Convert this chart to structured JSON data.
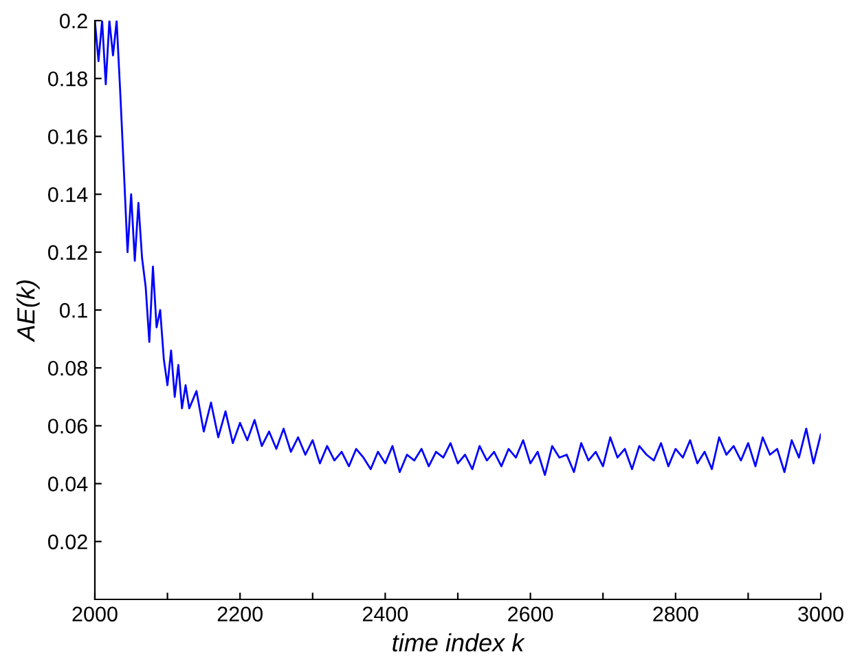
{
  "chart_data": {
    "type": "line",
    "xlabel": "time index k",
    "ylabel": "AE(k)",
    "x": [
      2000,
      2005,
      2010,
      2015,
      2020,
      2025,
      2030,
      2035,
      2040,
      2045,
      2050,
      2055,
      2060,
      2065,
      2070,
      2075,
      2080,
      2085,
      2090,
      2095,
      2100,
      2105,
      2110,
      2115,
      2120,
      2125,
      2130,
      2140,
      2150,
      2160,
      2170,
      2180,
      2190,
      2200,
      2210,
      2220,
      2230,
      2240,
      2250,
      2260,
      2270,
      2280,
      2290,
      2300,
      2310,
      2320,
      2330,
      2340,
      2350,
      2360,
      2370,
      2380,
      2390,
      2400,
      2410,
      2420,
      2430,
      2440,
      2450,
      2460,
      2470,
      2480,
      2490,
      2500,
      2510,
      2520,
      2530,
      2540,
      2550,
      2560,
      2570,
      2580,
      2590,
      2600,
      2610,
      2620,
      2630,
      2640,
      2650,
      2660,
      2670,
      2680,
      2690,
      2700,
      2710,
      2720,
      2730,
      2740,
      2750,
      2760,
      2770,
      2780,
      2790,
      2800,
      2810,
      2820,
      2830,
      2840,
      2850,
      2860,
      2870,
      2880,
      2890,
      2900,
      2910,
      2920,
      2930,
      2940,
      2950,
      2960,
      2970,
      2980,
      2990,
      3000
    ],
    "series": [
      {
        "color": "#0000ff",
        "values": [
          0.2,
          0.186,
          0.2,
          0.178,
          0.2,
          0.188,
          0.2,
          0.175,
          0.148,
          0.12,
          0.14,
          0.117,
          0.137,
          0.118,
          0.108,
          0.089,
          0.115,
          0.094,
          0.1,
          0.083,
          0.074,
          0.086,
          0.07,
          0.081,
          0.066,
          0.074,
          0.066,
          0.072,
          0.058,
          0.068,
          0.056,
          0.065,
          0.054,
          0.061,
          0.055,
          0.062,
          0.053,
          0.058,
          0.052,
          0.059,
          0.051,
          0.056,
          0.05,
          0.055,
          0.047,
          0.053,
          0.048,
          0.051,
          0.046,
          0.052,
          0.049,
          0.045,
          0.051,
          0.047,
          0.053,
          0.044,
          0.05,
          0.048,
          0.052,
          0.046,
          0.051,
          0.049,
          0.054,
          0.047,
          0.05,
          0.045,
          0.053,
          0.048,
          0.051,
          0.046,
          0.052,
          0.049,
          0.055,
          0.047,
          0.051,
          0.043,
          0.053,
          0.049,
          0.05,
          0.044,
          0.054,
          0.048,
          0.051,
          0.046,
          0.056,
          0.049,
          0.052,
          0.045,
          0.053,
          0.05,
          0.048,
          0.054,
          0.046,
          0.052,
          0.049,
          0.055,
          0.047,
          0.051,
          0.045,
          0.056,
          0.05,
          0.053,
          0.048,
          0.054,
          0.046,
          0.056,
          0.05,
          0.052,
          0.044,
          0.055,
          0.049,
          0.059,
          0.047,
          0.057
        ]
      }
    ],
    "xlim": [
      2000,
      3000
    ],
    "xticks": [
      2000,
      {
        "value": 2100,
        "label": null
      },
      2200,
      {
        "value": 2300,
        "label": null
      },
      2400,
      {
        "value": 2500,
        "label": null
      },
      2600,
      {
        "value": 2700,
        "label": null
      },
      2800,
      {
        "value": 2900,
        "label": null
      },
      3000
    ],
    "ylim": [
      0,
      0.2
    ],
    "yticks": [
      0.02,
      0.04,
      0.06,
      0.08,
      0.1,
      0.12,
      0.14,
      0.16,
      0.18,
      0.2
    ],
    "grid": false,
    "legend": false
  }
}
